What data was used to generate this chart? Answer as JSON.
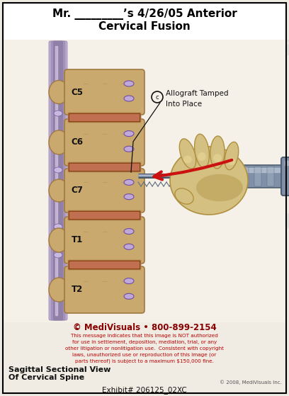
{
  "title_line1": "Mr. _________’s 4/26/05 Anterior",
  "title_line2": "Cervical Fusion",
  "bg_color": "#edeae2",
  "border_color": "#000000",
  "medivisuals_line": "© MediVisuals • 800-899-2154",
  "disclaimer_line1": "This message indicates that this image is NOT authorized",
  "disclaimer_line2": "for use in settlement, deposition, mediation, trial, or any",
  "disclaimer_line3": "other litigation or nonlitigation use.  Consistent with copyright",
  "disclaimer_line4": "laws, unauthorized use or reproduction of this image (or",
  "disclaimer_line5": "parts thereof) is subject to a maximum $150,000 fine.",
  "bottom_left_line1": "Sagittal Sectional View",
  "bottom_left_line2": "Of Cervical Spine",
  "copyright_small": "© 2008, MediVisuals Inc.",
  "exhibit_text": "Exhibit# 206125_02XC",
  "spine_tan": "#c9a96e",
  "spine_dark": "#a07840",
  "disc_color": "#d4b896",
  "disc_dark": "#b89060",
  "cord_color": "#b8a8cc",
  "cord_dark": "#9080a8",
  "nerve_color": "#cc6644",
  "hand_color": "#d4c080",
  "hand_dark": "#b09040",
  "hand_shadow": "#a08030",
  "instrument_light": "#c0c8d8",
  "instrument_mid": "#8090a8",
  "instrument_dark": "#506070",
  "red_arrow_color": "#cc1111",
  "title_color": "#000000",
  "watermark_color": "#c8c8c8",
  "disclaimer_color": "#bb0000",
  "medivisuals_color": "#880000",
  "label_color": "#111111"
}
